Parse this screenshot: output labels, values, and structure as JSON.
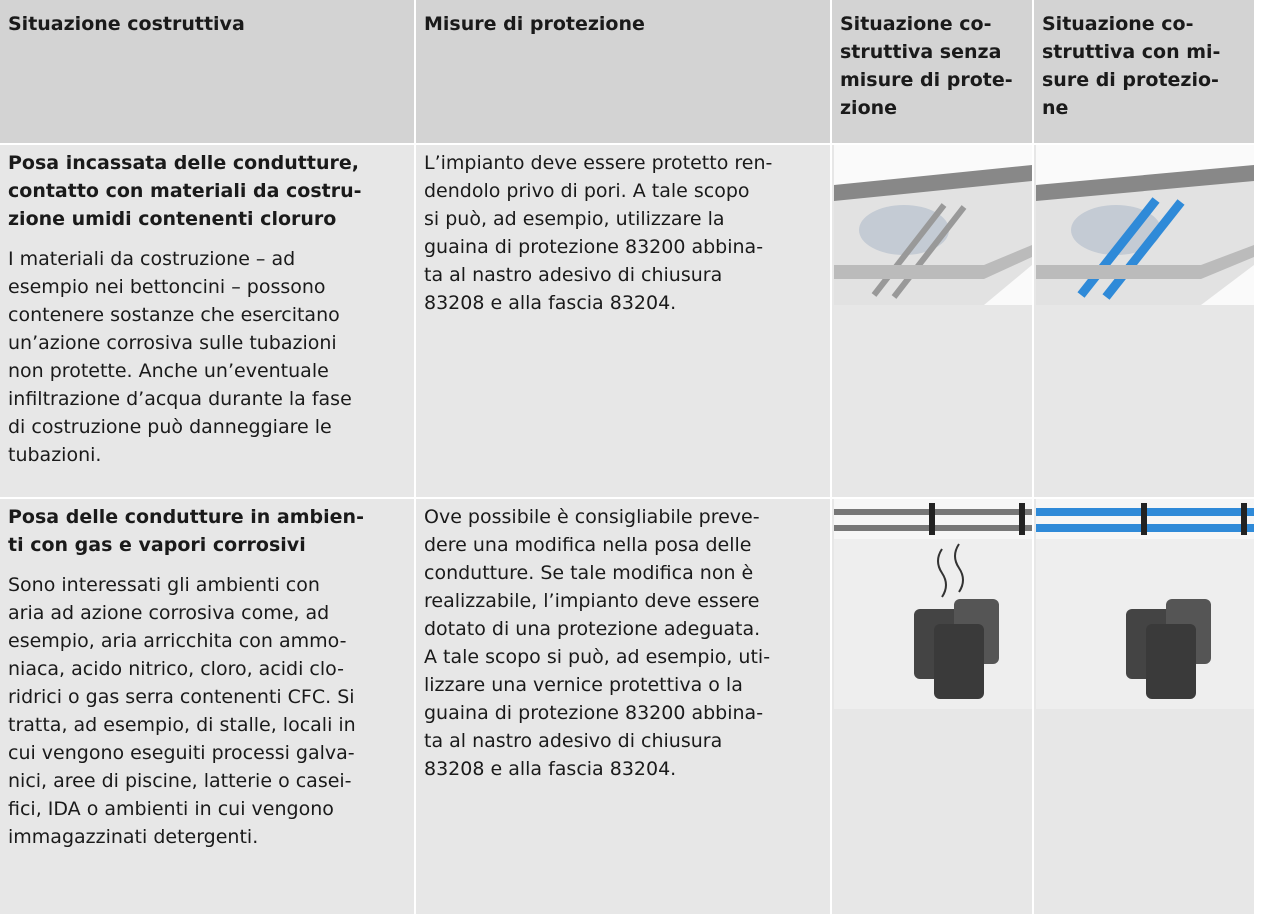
{
  "table": {
    "header": [
      [
        "Situazione costruttiva"
      ],
      [
        "Misure di protezione"
      ],
      [
        "Situazione co-",
        "struttiva senza",
        "misure di prote-",
        "zione"
      ],
      [
        "Situazione co-",
        "struttiva con mi-",
        "sure di protezio-",
        "ne"
      ]
    ],
    "rows": [
      {
        "title": [
          "Posa incassata delle condutture,",
          "contatto con materiali da costru-",
          "zione umidi contenenti cloruro"
        ],
        "body": [
          "I materiali da costruzione – ad",
          "esempio nei bettoncini – possono",
          "contenere sostanze che esercitano",
          "un’azione corrosiva sulle tubazioni",
          "non protette. Anche un’eventuale",
          "infiltrazione d’acqua durante la fase",
          "di costruzione può danneggiare le",
          "tubazioni."
        ],
        "measures": [
          "L’impianto deve essere protetto ren-",
          "dendolo privo di pori. A tale scopo",
          "si può, ad esempio, utilizzare la",
          "guaina di protezione 83200 abbina-",
          "ta al nastro adesivo di chiusura",
          "83208 e alla fascia 83204."
        ]
      },
      {
        "title": [
          "Posa delle condutture in ambien-",
          "ti con gas e vapori corrosivi"
        ],
        "body": [
          "Sono interessati gli ambienti con",
          "aria ad azione corrosiva come, ad",
          "esempio, aria arricchita con ammo-",
          "niaca, acido nitrico, cloro, acidi clo-",
          "ridrici o gas serra contenenti CFC. Si",
          "tratta, ad esempio, di stalle, locali in",
          "cui vengono eseguiti processi galva-",
          "nici, aree di piscine, latterie o casei-",
          "fici, IDA o ambienti in cui vengono",
          "immagazzinati detergenti."
        ],
        "measures": [
          "Ove possibile è consigliabile preve-",
          "dere una modifica nella posa delle",
          "condutture. Se tale modifica non è",
          "realizzabile, l’impianto deve essere",
          "dotato di una protezione adeguata.",
          "A tale scopo si può, ad esempio, uti-",
          "lizzare una vernice protettiva o la",
          "guaina di protezione 83200 abbina-",
          "ta al nastro adesivo di chiusura",
          "83208 e alla fascia 83204."
        ]
      }
    ]
  }
}
